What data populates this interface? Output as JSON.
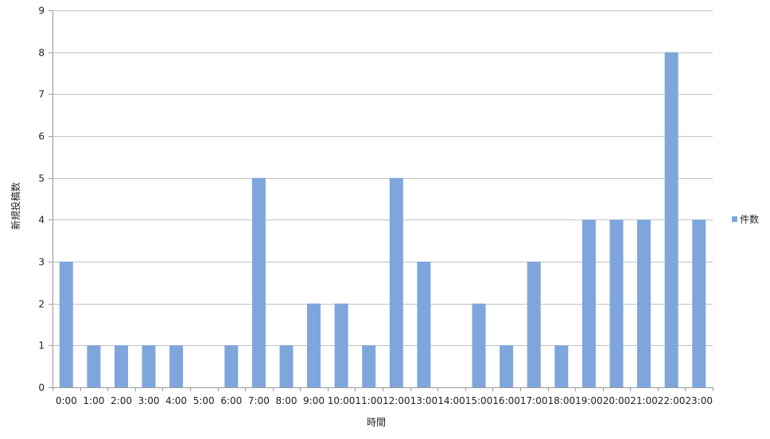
{
  "chart_data": {
    "type": "bar",
    "categories": [
      "0:00",
      "1:00",
      "2:00",
      "3:00",
      "4:00",
      "5:00",
      "6:00",
      "7:00",
      "8:00",
      "9:00",
      "10:00",
      "11:00",
      "12:00",
      "13:00",
      "14:00",
      "15:00",
      "16:00",
      "17:00",
      "18:00",
      "19:00",
      "20:00",
      "21:00",
      "22:00",
      "23:00"
    ],
    "series": [
      {
        "name": "件数",
        "values": [
          3,
          1,
          1,
          1,
          1,
          0,
          1,
          5,
          1,
          2,
          2,
          1,
          5,
          3,
          0,
          2,
          1,
          3,
          1,
          4,
          4,
          4,
          8,
          4
        ],
        "color": "#7ea6dc"
      }
    ],
    "xlabel": "時間",
    "ylabel": "新規投稿数",
    "ylim": [
      0,
      9
    ],
    "yticks": [
      "0",
      "1",
      "2",
      "3",
      "4",
      "5",
      "6",
      "7",
      "8",
      "9"
    ],
    "grid": true,
    "legend_position": "right",
    "colors": {
      "grid": "#c3c3c3",
      "axis": "#9a9a9a",
      "text": "#222222"
    }
  }
}
